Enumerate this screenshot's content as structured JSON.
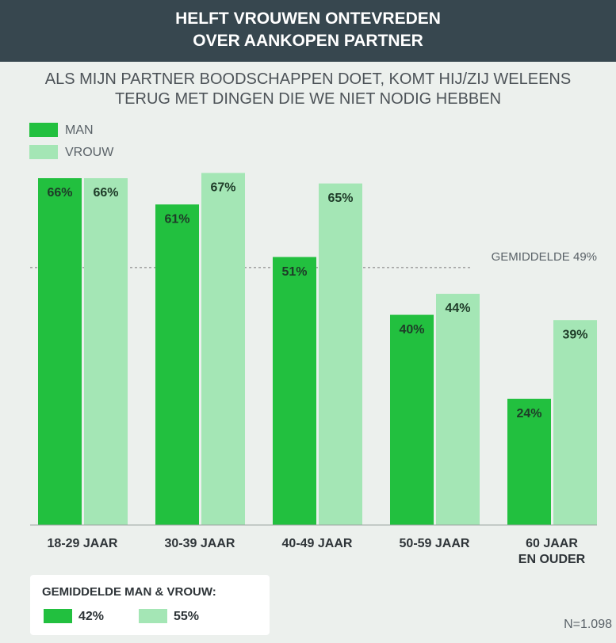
{
  "chart_data": {
    "type": "bar",
    "title": "HELFT VROUWEN ONTEVREDEN\nOVER AANKOPEN PARTNER",
    "subtitle": "ALS MIJN PARTNER BOODSCHAPPEN DOET, KOMT HIJ/ZIJ WELEENS\nTERUG MET DINGEN DIE WE NIET NODIG HEBBEN",
    "categories": [
      "18-29 JAAR",
      "30-39 JAAR",
      "40-49 JAAR",
      "50-59 JAAR",
      "60 JAAR\nEN OUDER"
    ],
    "series": [
      {
        "name": "MAN",
        "color": "#22c03f",
        "values": [
          66,
          61,
          51,
          40,
          24
        ],
        "value_labels": [
          "66%",
          "61%",
          "51%",
          "40%",
          "24%"
        ]
      },
      {
        "name": "VROUW",
        "color": "#a4e6b5",
        "values": [
          66,
          67,
          65,
          44,
          39
        ],
        "value_labels": [
          "66%",
          "67%",
          "65%",
          "44%",
          "39%"
        ]
      }
    ],
    "ylim": [
      0,
      100
    ],
    "average_line": {
      "value": 49,
      "label": "GEMIDDELDE 49%"
    },
    "averages": {
      "title": "GEMIDDELDE MAN & VROUW:",
      "values": [
        42,
        55
      ],
      "value_labels": [
        "42%",
        "55%"
      ]
    },
    "footnote": "N=1.098"
  }
}
